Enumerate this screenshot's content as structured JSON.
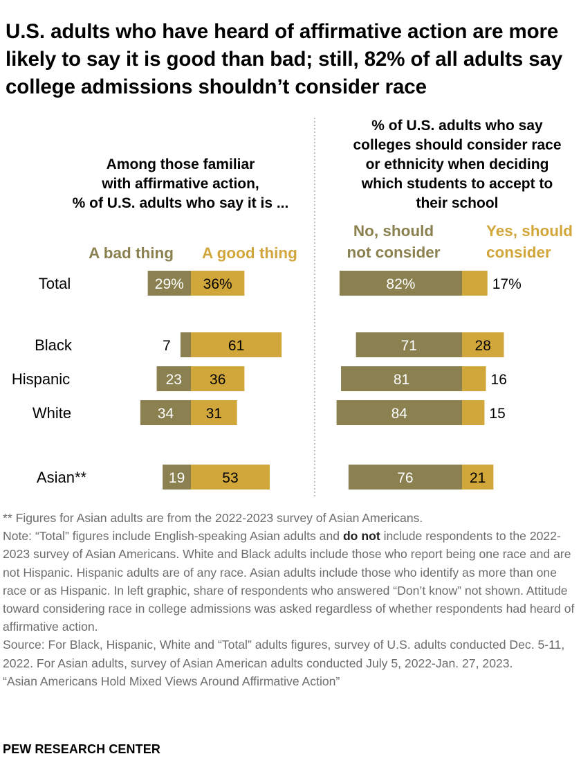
{
  "title": "U.S. adults who have heard of affirmative action are more likely to say it is good than bad; still, 82% of all adults say college admissions shouldn’t consider race",
  "colors": {
    "bad": "#8a8050",
    "good": "#d1a73c",
    "bad_text": "#8a8050",
    "good_text": "#d1a73c"
  },
  "chart_data": [
    {
      "type": "bar",
      "orientation": "horizontal-diverging",
      "title_lines": [
        "Among those familiar",
        "with affirmative action,",
        "% of U.S. adults who say it is ..."
      ],
      "categories": [
        "Total",
        "Black",
        "Hispanic",
        "White",
        "Asian**"
      ],
      "series": [
        {
          "name": "A bad thing",
          "values": [
            29,
            7,
            23,
            34,
            19
          ],
          "labels": [
            "29%",
            "7",
            "23",
            "34",
            "19"
          ]
        },
        {
          "name": "A good thing",
          "values": [
            36,
            61,
            36,
            31,
            53
          ],
          "labels": [
            "36%",
            "61",
            "36",
            "31",
            "53"
          ]
        }
      ]
    },
    {
      "type": "bar",
      "orientation": "horizontal-stacked",
      "title_lines": [
        "% of U.S. adults who say",
        "colleges should consider race",
        "or ethnicity when deciding",
        "which students to accept to",
        "their school"
      ],
      "categories": [
        "Total",
        "Black",
        "Hispanic",
        "White",
        "Asian**"
      ],
      "series": [
        {
          "name": "No, should not consider",
          "name_lines": [
            "No, should",
            "not consider"
          ],
          "values": [
            82,
            71,
            81,
            84,
            76
          ],
          "labels": [
            "82%",
            "71",
            "81",
            "84",
            "76"
          ]
        },
        {
          "name": "Yes, should consider",
          "name_lines": [
            "Yes, should",
            "consider"
          ],
          "values": [
            17,
            28,
            16,
            15,
            21
          ],
          "labels": [
            "17%",
            "28",
            "16",
            "15",
            "21"
          ]
        }
      ]
    }
  ],
  "footnotes": {
    "asian_note": "** Figures for Asian adults are from the 2022-2023 survey of Asian Americans.",
    "note_before_bold": "Note: “Total” figures include English-speaking Asian adults and ",
    "note_bold": "do not",
    "note_after_bold": " include respondents to the 2022-2023 survey of Asian Americans. White and Black adults include those who report being one race and are not Hispanic. Hispanic adults are of any race. Asian adults include those who identify as more than one race or as Hispanic. In left graphic, share of respondents who answered “Don’t know” not shown. Attitude toward considering race in college admissions was asked regardless of whether respondents had heard of affirmative action.",
    "source": "Source: For Black, Hispanic, White and “Total” adults figures, survey of U.S. adults conducted Dec. 5-11, 2022. For Asian adults, survey of Asian American adults conducted July 5, 2022-Jan. 27, 2023.",
    "report": "“Asian Americans Hold Mixed Views Around Affirmative Action”"
  },
  "brand": "PEW RESEARCH CENTER"
}
